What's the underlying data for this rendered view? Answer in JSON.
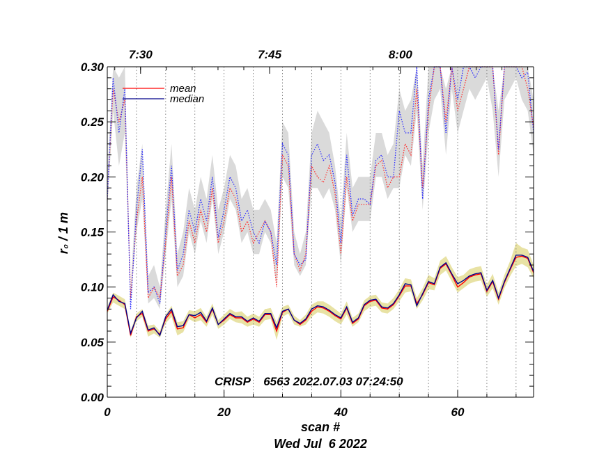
{
  "chart_data": {
    "type": "line",
    "title": "",
    "xlabel": "scan #",
    "xlabel_sub": "Wed Jul  6 2022",
    "ylabel": "r₀ / 1 m",
    "xlim": [
      0,
      73
    ],
    "ylim": [
      0.0,
      0.3
    ],
    "x_ticks": [
      0,
      20,
      40,
      60
    ],
    "x_tick_labels": [
      "0",
      "20",
      "40",
      "60"
    ],
    "y_ticks": [
      0.0,
      0.05,
      0.1,
      0.15,
      0.2,
      0.25,
      0.3
    ],
    "y_tick_labels": [
      "0.00",
      "0.05",
      "0.10",
      "0.15",
      "0.20",
      "0.25",
      "0.30"
    ],
    "top_axis": {
      "ticks": [
        5.7,
        27.8,
        50.2
      ],
      "labels": [
        "7:30",
        "7:45",
        "8:00"
      ]
    },
    "vertical_gridlines": [
      5,
      10,
      15,
      20,
      25,
      30,
      35,
      40,
      45,
      50,
      55,
      60,
      65,
      70
    ],
    "annotation": "CRISP    6563 2022.07.03 07:24:50",
    "legend": [
      {
        "name": "mean",
        "color": "#ff0000"
      },
      {
        "name": "median",
        "color": "#00008b"
      }
    ],
    "x": [
      0,
      1,
      2,
      3,
      4,
      5,
      6,
      7,
      8,
      9,
      10,
      11,
      12,
      13,
      14,
      15,
      16,
      17,
      18,
      19,
      20,
      21,
      22,
      23,
      24,
      25,
      26,
      27,
      28,
      29,
      30,
      31,
      32,
      33,
      34,
      35,
      36,
      37,
      38,
      39,
      40,
      41,
      42,
      43,
      44,
      45,
      46,
      47,
      48,
      49,
      50,
      51,
      52,
      53,
      54,
      55,
      56,
      57,
      58,
      59,
      60,
      61,
      62,
      63,
      64,
      65,
      66,
      67,
      68,
      69,
      70,
      71,
      72,
      73
    ],
    "series": [
      {
        "name": "upper mean",
        "style": "dotted",
        "color": "#ff3030",
        "values": [
          0.18,
          0.28,
          0.25,
          0.27,
          0.09,
          0.16,
          0.2,
          0.09,
          0.1,
          0.09,
          0.14,
          0.2,
          0.11,
          0.12,
          0.16,
          0.14,
          0.17,
          0.15,
          0.19,
          0.14,
          0.16,
          0.19,
          0.18,
          0.15,
          0.16,
          0.14,
          0.15,
          0.16,
          0.15,
          0.1,
          0.22,
          0.21,
          0.13,
          0.115,
          0.13,
          0.21,
          0.2,
          0.195,
          0.21,
          0.185,
          0.13,
          0.2,
          0.16,
          0.175,
          0.175,
          0.175,
          0.21,
          0.215,
          0.19,
          0.2,
          0.2,
          0.23,
          0.22,
          0.28,
          0.19,
          0.26,
          0.3,
          0.3,
          0.25,
          0.3,
          0.26,
          0.28,
          0.3,
          0.3,
          0.3,
          0.3,
          0.3,
          0.22,
          0.3,
          0.3,
          0.3,
          0.3,
          0.28,
          0.245
        ]
      },
      {
        "name": "upper median",
        "style": "dotted",
        "color": "#2a2aff",
        "values": [
          0.18,
          0.29,
          0.24,
          0.28,
          0.08,
          0.17,
          0.225,
          0.095,
          0.1,
          0.085,
          0.15,
          0.21,
          0.115,
          0.13,
          0.17,
          0.15,
          0.18,
          0.16,
          0.2,
          0.145,
          0.17,
          0.2,
          0.19,
          0.16,
          0.17,
          0.15,
          0.14,
          0.16,
          0.15,
          0.12,
          0.23,
          0.22,
          0.13,
          0.12,
          0.125,
          0.22,
          0.23,
          0.215,
          0.22,
          0.195,
          0.14,
          0.22,
          0.165,
          0.18,
          0.18,
          0.175,
          0.215,
          0.22,
          0.2,
          0.2,
          0.26,
          0.24,
          0.24,
          0.3,
          0.18,
          0.27,
          0.3,
          0.3,
          0.24,
          0.3,
          0.27,
          0.3,
          0.3,
          0.29,
          0.3,
          0.3,
          0.3,
          0.225,
          0.3,
          0.3,
          0.3,
          0.29,
          0.295,
          0.24
        ]
      },
      {
        "name": "mean",
        "style": "solid",
        "color": "#ff0000",
        "values": [
          0.078,
          0.091,
          0.088,
          0.084,
          0.056,
          0.073,
          0.076,
          0.06,
          0.062,
          0.057,
          0.071,
          0.078,
          0.062,
          0.063,
          0.075,
          0.072,
          0.075,
          0.068,
          0.08,
          0.066,
          0.07,
          0.075,
          0.072,
          0.072,
          0.068,
          0.071,
          0.068,
          0.075,
          0.075,
          0.06,
          0.077,
          0.08,
          0.07,
          0.066,
          0.07,
          0.078,
          0.082,
          0.081,
          0.078,
          0.074,
          0.071,
          0.081,
          0.067,
          0.071,
          0.083,
          0.087,
          0.088,
          0.081,
          0.08,
          0.084,
          0.092,
          0.101,
          0.101,
          0.085,
          0.093,
          0.104,
          0.102,
          0.117,
          0.121,
          0.111,
          0.1,
          0.104,
          0.109,
          0.111,
          0.112,
          0.096,
          0.105,
          0.089,
          0.104,
          0.116,
          0.127,
          0.128,
          0.126,
          0.113
        ]
      },
      {
        "name": "median",
        "style": "solid",
        "color": "#00008b",
        "values": [
          0.079,
          0.093,
          0.087,
          0.085,
          0.058,
          0.072,
          0.078,
          0.061,
          0.063,
          0.056,
          0.073,
          0.08,
          0.064,
          0.065,
          0.075,
          0.074,
          0.077,
          0.069,
          0.081,
          0.066,
          0.071,
          0.076,
          0.073,
          0.073,
          0.069,
          0.072,
          0.069,
          0.076,
          0.076,
          0.063,
          0.078,
          0.08,
          0.07,
          0.067,
          0.071,
          0.08,
          0.083,
          0.082,
          0.079,
          0.075,
          0.072,
          0.082,
          0.068,
          0.072,
          0.084,
          0.088,
          0.089,
          0.082,
          0.081,
          0.085,
          0.093,
          0.103,
          0.102,
          0.083,
          0.094,
          0.105,
          0.103,
          0.118,
          0.122,
          0.112,
          0.103,
          0.106,
          0.11,
          0.112,
          0.113,
          0.097,
          0.106,
          0.09,
          0.105,
          0.117,
          0.129,
          0.129,
          0.127,
          0.114
        ]
      }
    ],
    "bands": [
      {
        "name": "upper spread",
        "color": "#dadada",
        "low": [
          0.17,
          0.26,
          0.21,
          0.24,
          0.085,
          0.15,
          0.18,
          0.085,
          0.09,
          0.08,
          0.13,
          0.18,
          0.1,
          0.11,
          0.15,
          0.13,
          0.16,
          0.14,
          0.18,
          0.13,
          0.15,
          0.18,
          0.17,
          0.14,
          0.15,
          0.13,
          0.13,
          0.15,
          0.14,
          0.1,
          0.2,
          0.19,
          0.12,
          0.11,
          0.12,
          0.19,
          0.19,
          0.18,
          0.19,
          0.17,
          0.12,
          0.19,
          0.15,
          0.16,
          0.16,
          0.16,
          0.2,
          0.2,
          0.18,
          0.19,
          0.19,
          0.22,
          0.21,
          0.26,
          0.17,
          0.24,
          0.27,
          0.28,
          0.22,
          0.28,
          0.24,
          0.26,
          0.28,
          0.27,
          0.28,
          0.29,
          0.26,
          0.2,
          0.27,
          0.28,
          0.29,
          0.27,
          0.26,
          0.22
        ],
        "high": [
          0.2,
          0.3,
          0.29,
          0.3,
          0.1,
          0.19,
          0.23,
          0.11,
          0.12,
          0.1,
          0.17,
          0.23,
          0.13,
          0.15,
          0.19,
          0.17,
          0.2,
          0.18,
          0.22,
          0.17,
          0.19,
          0.22,
          0.21,
          0.18,
          0.19,
          0.17,
          0.17,
          0.18,
          0.17,
          0.14,
          0.25,
          0.24,
          0.15,
          0.13,
          0.15,
          0.24,
          0.26,
          0.25,
          0.24,
          0.21,
          0.16,
          0.24,
          0.19,
          0.2,
          0.2,
          0.2,
          0.24,
          0.24,
          0.22,
          0.23,
          0.28,
          0.26,
          0.27,
          0.3,
          0.21,
          0.3,
          0.3,
          0.3,
          0.28,
          0.3,
          0.3,
          0.3,
          0.3,
          0.3,
          0.3,
          0.3,
          0.3,
          0.26,
          0.3,
          0.3,
          0.3,
          0.3,
          0.3,
          0.27
        ]
      },
      {
        "name": "lower spread",
        "color": "#e8e2a4",
        "low": [
          0.076,
          0.086,
          0.083,
          0.08,
          0.054,
          0.069,
          0.073,
          0.055,
          0.058,
          0.054,
          0.067,
          0.073,
          0.056,
          0.059,
          0.071,
          0.068,
          0.07,
          0.064,
          0.075,
          0.062,
          0.066,
          0.071,
          0.068,
          0.067,
          0.064,
          0.066,
          0.064,
          0.07,
          0.071,
          0.052,
          0.073,
          0.076,
          0.066,
          0.064,
          0.066,
          0.073,
          0.077,
          0.076,
          0.073,
          0.069,
          0.066,
          0.075,
          0.064,
          0.068,
          0.078,
          0.082,
          0.083,
          0.077,
          0.076,
          0.08,
          0.087,
          0.095,
          0.096,
          0.08,
          0.088,
          0.098,
          0.097,
          0.111,
          0.115,
          0.105,
          0.095,
          0.099,
          0.103,
          0.105,
          0.106,
          0.091,
          0.099,
          0.084,
          0.099,
          0.11,
          0.119,
          0.121,
          0.118,
          0.108
        ],
        "high": [
          0.082,
          0.095,
          0.092,
          0.089,
          0.06,
          0.076,
          0.08,
          0.065,
          0.066,
          0.06,
          0.075,
          0.083,
          0.068,
          0.069,
          0.079,
          0.078,
          0.081,
          0.073,
          0.085,
          0.07,
          0.075,
          0.08,
          0.077,
          0.078,
          0.073,
          0.076,
          0.073,
          0.08,
          0.081,
          0.068,
          0.082,
          0.084,
          0.074,
          0.07,
          0.075,
          0.084,
          0.087,
          0.087,
          0.084,
          0.08,
          0.076,
          0.087,
          0.072,
          0.076,
          0.088,
          0.092,
          0.093,
          0.086,
          0.085,
          0.09,
          0.098,
          0.108,
          0.107,
          0.09,
          0.099,
          0.111,
          0.108,
          0.124,
          0.128,
          0.118,
          0.109,
          0.111,
          0.116,
          0.118,
          0.119,
          0.102,
          0.112,
          0.095,
          0.111,
          0.124,
          0.14,
          0.136,
          0.134,
          0.12
        ]
      }
    ]
  }
}
